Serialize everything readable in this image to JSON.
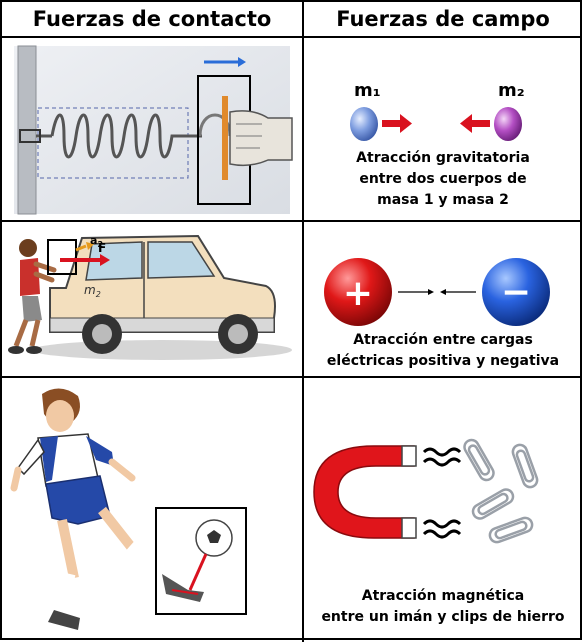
{
  "headers": {
    "contact": "Fuerzas de contacto",
    "field": "Fuerzas de campo"
  },
  "gravity": {
    "mass1_label": "m₁",
    "mass2_label": "m₂",
    "caption_lines": [
      "Atracción gravitatoria",
      "entre dos cuerpos de",
      "masa 1 y masa 2"
    ]
  },
  "electric": {
    "positive_sign": "+",
    "negative_sign": "−",
    "caption_lines": [
      "Atracción entre cargas",
      "eléctricas positiva y negativa"
    ]
  },
  "magnetic": {
    "caption_lines": [
      "Atracción magnética",
      "entre un imán y clips de hierro"
    ]
  },
  "car_push": {
    "accel_label": "a",
    "accel_subscript": "2",
    "force_label": "F",
    "mass_label": "m",
    "mass_subscript": "2"
  },
  "colors": {
    "arrow_red": "#d9121f",
    "arrow_blue": "#2a6dd8",
    "magnet_red": "#e0151b",
    "car_body": "#f3dfbe",
    "sphere_blue": "#7f9ee0",
    "sphere_purple": "#b44fc4"
  }
}
